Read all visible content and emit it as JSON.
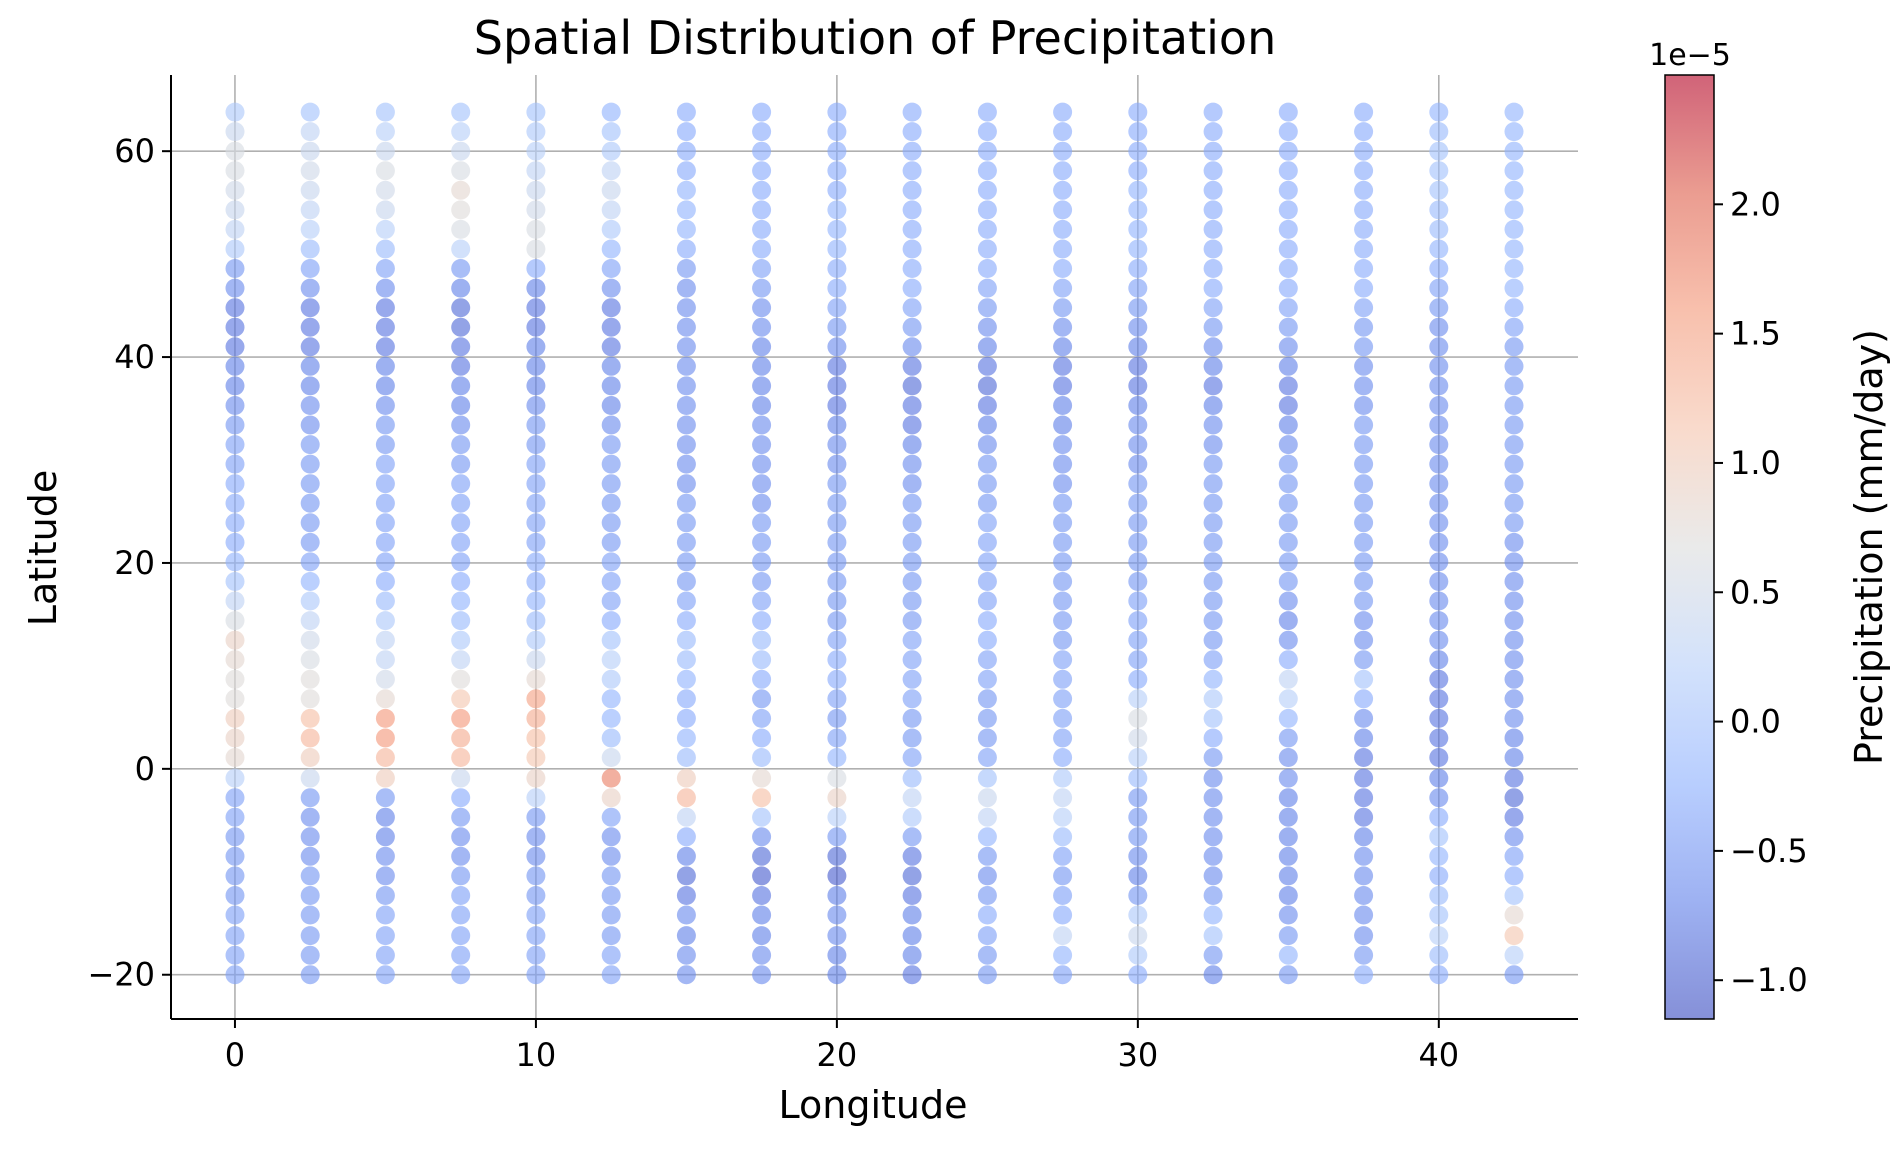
{
  "chart_data": {
    "type": "scatter",
    "title": "Spatial Distribution of Precipitation",
    "xlabel": "Longitude",
    "ylabel": "Latitude",
    "xlim": [
      -2.125,
      44.625
    ],
    "ylim": [
      -24.3,
      67.4
    ],
    "xticks": [
      0,
      10,
      20,
      30,
      40
    ],
    "yticks": [
      -20,
      0,
      20,
      40,
      60
    ],
    "grid": true,
    "colormap": "coolwarm",
    "colorbar": {
      "label": "Precipitation (mm/day)",
      "scale_label": "1e−5",
      "range": [
        -1.15,
        2.5
      ],
      "ticks": [
        -1.0,
        -0.5,
        0.0,
        0.5,
        1.0,
        1.5,
        2.0
      ],
      "tick_labels": [
        "−1.0",
        "−0.5",
        "0.0",
        "0.5",
        "1.0",
        "1.5",
        "2.0"
      ]
    },
    "x": [
      0,
      2.5,
      5,
      7.5,
      10,
      12.5,
      15,
      17.5,
      20,
      22.5,
      25,
      27.5,
      30,
      32.5,
      35,
      37.5,
      40,
      42.5
    ],
    "y": [
      -20,
      -18.1,
      -16.2,
      -14.2,
      -12.3,
      -10.4,
      -8.5,
      -6.6,
      -4.7,
      -2.8,
      -0.9,
      1.1,
      3.0,
      4.9,
      6.8,
      8.7,
      10.6,
      12.5,
      14.4,
      16.3,
      18.2,
      20.1,
      22.0,
      23.9,
      25.8,
      27.7,
      29.6,
      31.5,
      33.4,
      35.3,
      37.2,
      39.1,
      41.0,
      42.9,
      44.8,
      46.7,
      48.6,
      50.5,
      52.4,
      54.3,
      56.2,
      58.1,
      60.0,
      61.9,
      63.8
    ],
    "precipitation_note_units": "values in units of 1e-5 mm/day, one list per longitude column, bottom (y=-20) to top",
    "values": [
      [
        -0.4,
        -0.4,
        -0.4,
        -0.4,
        -0.5,
        -0.5,
        -0.5,
        -0.5,
        -0.4,
        -0.4,
        0.2,
        0.8,
        0.9,
        1.0,
        0.7,
        0.7,
        0.8,
        0.9,
        0.6,
        0.3,
        0.0,
        -0.2,
        -0.3,
        -0.3,
        -0.3,
        -0.3,
        -0.4,
        -0.4,
        -0.5,
        -0.6,
        -0.7,
        -0.7,
        -0.8,
        -0.8,
        -0.8,
        -0.6,
        -0.5,
        0.1,
        0.3,
        0.4,
        0.5,
        0.6,
        0.6,
        0.4,
        0.1
      ],
      [
        -0.5,
        -0.5,
        -0.5,
        -0.5,
        -0.5,
        -0.5,
        -0.6,
        -0.6,
        -0.6,
        -0.5,
        0.4,
        1.0,
        1.3,
        1.2,
        0.7,
        0.7,
        0.6,
        0.5,
        0.3,
        0.1,
        -0.2,
        -0.4,
        -0.5,
        -0.5,
        -0.5,
        -0.5,
        -0.5,
        -0.5,
        -0.6,
        -0.6,
        -0.7,
        -0.7,
        -0.8,
        -0.8,
        -0.8,
        -0.6,
        -0.4,
        -0.1,
        0.2,
        0.3,
        0.4,
        0.5,
        0.4,
        0.3,
        0.0
      ],
      [
        -0.4,
        -0.4,
        -0.4,
        -0.4,
        -0.5,
        -0.6,
        -0.6,
        -0.7,
        -0.7,
        -0.5,
        1.0,
        1.3,
        1.6,
        1.6,
        0.8,
        0.5,
        0.3,
        0.3,
        0.1,
        -0.1,
        -0.3,
        -0.4,
        -0.4,
        -0.4,
        -0.4,
        -0.4,
        -0.4,
        -0.5,
        -0.5,
        -0.6,
        -0.7,
        -0.7,
        -0.8,
        -0.8,
        -0.8,
        -0.6,
        -0.4,
        -0.1,
        0.2,
        0.4,
        0.5,
        0.6,
        0.4,
        0.2,
        0.0
      ],
      [
        -0.4,
        -0.4,
        -0.4,
        -0.4,
        -0.4,
        -0.5,
        -0.6,
        -0.6,
        -0.5,
        -0.3,
        0.4,
        1.3,
        1.4,
        1.6,
        1.1,
        0.7,
        0.3,
        0.1,
        -0.1,
        -0.2,
        -0.3,
        -0.4,
        -0.4,
        -0.4,
        -0.4,
        -0.4,
        -0.5,
        -0.5,
        -0.6,
        -0.7,
        -0.7,
        -0.8,
        -0.8,
        -0.9,
        -0.9,
        -0.7,
        -0.5,
        0.2,
        0.6,
        0.7,
        0.8,
        0.6,
        0.4,
        0.2,
        0.0
      ],
      [
        -0.4,
        -0.4,
        -0.4,
        -0.4,
        -0.5,
        -0.5,
        -0.6,
        -0.6,
        -0.5,
        0.2,
        0.9,
        1.1,
        1.2,
        1.4,
        1.5,
        0.8,
        0.4,
        0.1,
        -0.1,
        -0.2,
        -0.3,
        -0.3,
        -0.4,
        -0.4,
        -0.4,
        -0.4,
        -0.4,
        -0.5,
        -0.5,
        -0.6,
        -0.7,
        -0.7,
        -0.7,
        -0.8,
        -0.8,
        -0.7,
        -0.3,
        0.6,
        0.6,
        0.5,
        0.4,
        0.3,
        0.2,
        0.1,
        0.0
      ],
      [
        -0.4,
        -0.4,
        -0.5,
        -0.5,
        -0.5,
        -0.5,
        -0.6,
        -0.6,
        -0.4,
        0.9,
        1.8,
        0.4,
        -0.1,
        -0.2,
        -0.2,
        0.1,
        0.2,
        0.0,
        -0.3,
        -0.4,
        -0.4,
        -0.4,
        -0.5,
        -0.5,
        -0.5,
        -0.5,
        -0.5,
        -0.5,
        -0.6,
        -0.7,
        -0.7,
        -0.7,
        -0.8,
        -0.8,
        -0.8,
        -0.6,
        -0.4,
        -0.2,
        0.1,
        0.3,
        0.4,
        0.3,
        0.1,
        0.0,
        -0.2
      ],
      [
        -0.6,
        -0.6,
        -0.7,
        -0.6,
        -0.8,
        -0.9,
        -0.7,
        -0.3,
        0.3,
        1.3,
        1.0,
        -0.1,
        -0.2,
        -0.3,
        -0.3,
        -0.2,
        -0.1,
        -0.1,
        -0.3,
        -0.4,
        -0.5,
        -0.5,
        -0.5,
        -0.5,
        -0.5,
        -0.6,
        -0.6,
        -0.6,
        -0.6,
        -0.6,
        -0.6,
        -0.6,
        -0.6,
        -0.6,
        -0.6,
        -0.6,
        -0.5,
        -0.3,
        -0.2,
        -0.2,
        -0.2,
        -0.3,
        -0.3,
        -0.3,
        -0.3
      ],
      [
        -0.6,
        -0.6,
        -0.7,
        -0.7,
        -0.8,
        -1.0,
        -0.9,
        -0.6,
        0.0,
        1.2,
        0.8,
        -0.1,
        -0.3,
        -0.4,
        -0.5,
        -0.3,
        -0.1,
        -0.1,
        -0.3,
        -0.4,
        -0.5,
        -0.5,
        -0.5,
        -0.5,
        -0.6,
        -0.6,
        -0.6,
        -0.6,
        -0.6,
        -0.7,
        -0.7,
        -0.7,
        -0.7,
        -0.6,
        -0.6,
        -0.5,
        -0.4,
        -0.3,
        -0.3,
        -0.3,
        -0.3,
        -0.3,
        -0.3,
        -0.3,
        -0.3
      ],
      [
        -0.7,
        -0.7,
        -0.6,
        -0.6,
        -0.7,
        -1.0,
        -0.9,
        -0.5,
        0.2,
        0.9,
        0.6,
        -0.2,
        -0.4,
        -0.5,
        -0.4,
        -0.3,
        -0.3,
        -0.4,
        -0.5,
        -0.5,
        -0.5,
        -0.5,
        -0.5,
        -0.5,
        -0.5,
        -0.5,
        -0.6,
        -0.6,
        -0.7,
        -0.8,
        -0.8,
        -0.8,
        -0.6,
        -0.5,
        -0.4,
        -0.3,
        -0.3,
        -0.2,
        -0.2,
        -0.2,
        -0.3,
        -0.3,
        -0.3,
        -0.3,
        -0.3
      ],
      [
        -0.8,
        -0.7,
        -0.7,
        -0.7,
        -0.8,
        -0.9,
        -0.8,
        -0.5,
        0.1,
        0.3,
        -0.1,
        -0.4,
        -0.5,
        -0.5,
        -0.4,
        -0.4,
        -0.4,
        -0.4,
        -0.5,
        -0.5,
        -0.5,
        -0.5,
        -0.5,
        -0.5,
        -0.5,
        -0.6,
        -0.6,
        -0.7,
        -0.8,
        -0.8,
        -0.9,
        -0.8,
        -0.6,
        -0.5,
        -0.4,
        -0.3,
        -0.3,
        -0.3,
        -0.3,
        -0.3,
        -0.3,
        -0.3,
        -0.3,
        -0.3,
        -0.3
      ],
      [
        -0.5,
        -0.5,
        -0.4,
        -0.3,
        -0.5,
        -0.6,
        -0.5,
        -0.2,
        0.3,
        0.4,
        0.0,
        -0.4,
        -0.5,
        -0.5,
        -0.5,
        -0.4,
        -0.4,
        -0.3,
        -0.3,
        -0.4,
        -0.4,
        -0.4,
        -0.4,
        -0.4,
        -0.5,
        -0.5,
        -0.5,
        -0.6,
        -0.7,
        -0.8,
        -0.9,
        -0.8,
        -0.7,
        -0.6,
        -0.5,
        -0.4,
        -0.3,
        -0.3,
        -0.3,
        -0.3,
        -0.3,
        -0.3,
        -0.3,
        -0.3,
        -0.3
      ],
      [
        -0.4,
        -0.2,
        0.3,
        -0.3,
        -0.4,
        -0.5,
        -0.4,
        -0.1,
        0.2,
        0.3,
        0.1,
        -0.3,
        -0.4,
        -0.4,
        -0.4,
        -0.4,
        -0.4,
        -0.5,
        -0.5,
        -0.5,
        -0.5,
        -0.5,
        -0.5,
        -0.5,
        -0.5,
        -0.6,
        -0.6,
        -0.6,
        -0.7,
        -0.7,
        -0.8,
        -0.8,
        -0.7,
        -0.6,
        -0.5,
        -0.4,
        -0.3,
        -0.3,
        -0.3,
        -0.3,
        -0.3,
        -0.3,
        -0.3,
        -0.3,
        -0.3
      ],
      [
        -0.3,
        0.1,
        0.4,
        0.1,
        -0.5,
        -0.7,
        -0.6,
        -0.5,
        -0.5,
        -0.5,
        -0.1,
        0.2,
        0.5,
        0.6,
        0.2,
        -0.3,
        -0.4,
        -0.4,
        -0.4,
        -0.4,
        -0.5,
        -0.5,
        -0.5,
        -0.5,
        -0.5,
        -0.5,
        -0.6,
        -0.6,
        -0.6,
        -0.7,
        -0.8,
        -0.8,
        -0.7,
        -0.6,
        -0.5,
        -0.4,
        -0.3,
        -0.2,
        -0.2,
        -0.2,
        -0.2,
        -0.3,
        -0.3,
        -0.3,
        -0.3
      ],
      [
        -0.7,
        -0.5,
        0.0,
        -0.2,
        -0.5,
        -0.6,
        -0.6,
        -0.6,
        -0.6,
        -0.6,
        -0.6,
        -0.5,
        -0.3,
        0.0,
        0.1,
        -0.2,
        -0.4,
        -0.5,
        -0.5,
        -0.5,
        -0.5,
        -0.5,
        -0.5,
        -0.5,
        -0.5,
        -0.5,
        -0.5,
        -0.6,
        -0.6,
        -0.7,
        -0.8,
        -0.7,
        -0.6,
        -0.5,
        -0.4,
        -0.3,
        -0.3,
        -0.3,
        -0.3,
        -0.3,
        -0.3,
        -0.3,
        -0.3,
        -0.3,
        -0.3
      ],
      [
        -0.5,
        -0.2,
        -0.5,
        -0.6,
        -0.7,
        -0.7,
        -0.7,
        -0.7,
        -0.7,
        -0.7,
        -0.6,
        -0.6,
        -0.5,
        -0.2,
        0.2,
        0.3,
        -0.3,
        -0.6,
        -0.7,
        -0.6,
        -0.5,
        -0.5,
        -0.5,
        -0.5,
        -0.5,
        -0.5,
        -0.5,
        -0.6,
        -0.7,
        -0.8,
        -0.8,
        -0.7,
        -0.6,
        -0.5,
        -0.4,
        -0.3,
        -0.3,
        -0.3,
        -0.3,
        -0.3,
        -0.3,
        -0.3,
        -0.3,
        -0.3,
        -0.3
      ],
      [
        -0.3,
        -0.5,
        -0.6,
        -0.6,
        -0.6,
        -0.6,
        -0.6,
        -0.7,
        -0.8,
        -0.8,
        -0.8,
        -0.8,
        -0.7,
        -0.6,
        -0.3,
        0.0,
        -0.5,
        -0.6,
        -0.6,
        -0.5,
        -0.5,
        -0.5,
        -0.5,
        -0.5,
        -0.5,
        -0.5,
        -0.5,
        -0.5,
        -0.5,
        -0.6,
        -0.6,
        -0.6,
        -0.5,
        -0.5,
        -0.4,
        -0.3,
        -0.3,
        -0.3,
        -0.3,
        -0.3,
        -0.3,
        -0.3,
        -0.3,
        -0.3,
        -0.3
      ],
      [
        -0.3,
        -0.1,
        0.2,
        0.0,
        -0.1,
        -0.3,
        -0.2,
        0.0,
        -0.3,
        -0.6,
        -0.7,
        -0.8,
        -0.8,
        -0.8,
        -0.8,
        -0.8,
        -0.7,
        -0.6,
        -0.6,
        -0.6,
        -0.6,
        -0.6,
        -0.6,
        -0.6,
        -0.6,
        -0.6,
        -0.6,
        -0.6,
        -0.6,
        -0.6,
        -0.6,
        -0.6,
        -0.6,
        -0.6,
        -0.5,
        -0.4,
        -0.3,
        -0.2,
        -0.1,
        -0.1,
        0.0,
        0.0,
        0.0,
        -0.1,
        -0.2
      ],
      [
        -0.5,
        0.2,
        1.1,
        0.8,
        0.0,
        -0.3,
        -0.4,
        -0.6,
        -0.8,
        -0.9,
        -0.8,
        -0.7,
        -0.7,
        -0.6,
        -0.6,
        -0.6,
        -0.6,
        -0.6,
        -0.6,
        -0.6,
        -0.6,
        -0.6,
        -0.6,
        -0.5,
        -0.5,
        -0.5,
        -0.5,
        -0.5,
        -0.5,
        -0.5,
        -0.5,
        -0.5,
        -0.5,
        -0.4,
        -0.3,
        -0.2,
        -0.2,
        -0.2,
        -0.2,
        -0.2,
        -0.2,
        -0.2,
        -0.2,
        -0.2,
        -0.2
      ]
    ]
  }
}
